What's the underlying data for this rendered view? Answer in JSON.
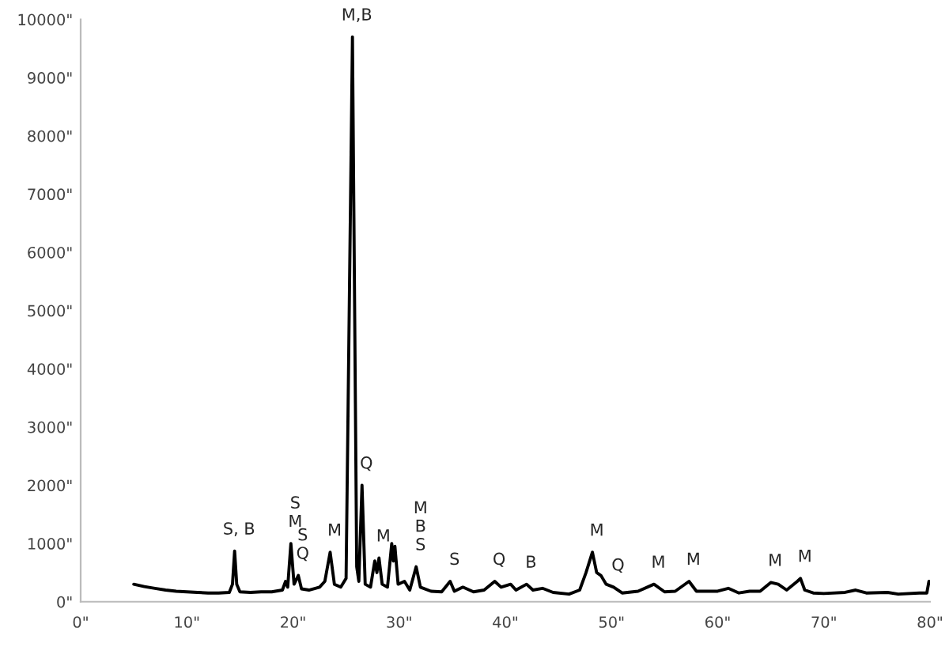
{
  "chart_data": {
    "type": "line",
    "x": [
      5,
      6,
      7,
      8,
      9,
      10,
      11,
      12,
      13,
      14,
      14.3,
      14.5,
      14.7,
      15,
      16,
      17,
      18,
      19,
      19.3,
      19.5,
      19.8,
      20.1,
      20.5,
      20.8,
      21.5,
      22.5,
      23,
      23.5,
      23.9,
      24.5,
      25,
      25.6,
      26,
      26.2,
      26.5,
      26.8,
      27.3,
      27.7,
      27.9,
      28.1,
      28.4,
      28.9,
      29.3,
      29.45,
      29.6,
      29.9,
      30.5,
      31,
      31.6,
      32,
      33,
      34,
      34.8,
      35.2,
      36,
      37,
      38,
      39,
      39.6,
      40.5,
      41,
      42,
      42.6,
      43.5,
      44.5,
      46,
      47,
      47.6,
      48.2,
      48.6,
      49,
      49.5,
      50.2,
      51,
      52.5,
      54,
      55,
      56,
      57.3,
      58,
      60,
      61,
      62,
      63,
      64,
      65,
      65.7,
      66.5,
      67.5,
      67.8,
      68.2,
      69,
      70,
      72,
      73,
      74,
      76,
      77,
      79,
      79.7,
      79.9
    ],
    "series": [
      {
        "color": "#000000",
        "values": [
          300,
          260,
          230,
          200,
          180,
          170,
          160,
          150,
          150,
          160,
          300,
          870,
          300,
          170,
          160,
          170,
          170,
          200,
          350,
          250,
          1000,
          300,
          450,
          220,
          200,
          250,
          350,
          850,
          300,
          250,
          400,
          9700,
          600,
          350,
          2000,
          300,
          250,
          700,
          500,
          750,
          300,
          250,
          1000,
          700,
          950,
          300,
          350,
          200,
          600,
          250,
          180,
          170,
          350,
          180,
          250,
          170,
          200,
          350,
          250,
          300,
          200,
          300,
          200,
          230,
          160,
          130,
          200,
          500,
          850,
          500,
          450,
          300,
          250,
          150,
          180,
          300,
          170,
          180,
          350,
          180,
          180,
          230,
          150,
          180,
          180,
          330,
          300,
          200,
          350,
          400,
          200,
          150,
          140,
          160,
          200,
          150,
          160,
          130,
          150,
          150,
          350
        ]
      }
    ],
    "xlim": [
      0,
      80
    ],
    "xticks": [
      {
        "value": 0,
        "label": "0\""
      },
      {
        "value": 10,
        "label": "10\""
      },
      {
        "value": 20,
        "label": "20\""
      },
      {
        "value": 30,
        "label": "30\""
      },
      {
        "value": 40,
        "label": "40\""
      },
      {
        "value": 50,
        "label": "50\""
      },
      {
        "value": 60,
        "label": "60\""
      },
      {
        "value": 70,
        "label": "70\""
      },
      {
        "value": 80,
        "label": "80\""
      }
    ],
    "ylim": [
      0,
      10000
    ],
    "yticks": [
      {
        "value": 0,
        "label": "0\""
      },
      {
        "value": 1000,
        "label": "1000\""
      },
      {
        "value": 2000,
        "label": "2000\""
      },
      {
        "value": 3000,
        "label": "3000\""
      },
      {
        "value": 4000,
        "label": "4000\""
      },
      {
        "value": 5000,
        "label": "5000\""
      },
      {
        "value": 6000,
        "label": "6000\""
      },
      {
        "value": 7000,
        "label": "7000\""
      },
      {
        "value": 8000,
        "label": "8000\""
      },
      {
        "value": 9000,
        "label": "9000\""
      },
      {
        "value": 10000,
        "label": "10000\""
      }
    ],
    "grid": false,
    "marker": "none",
    "line_style": "solid",
    "annotations": [
      {
        "text": "S, B",
        "x": 14.5,
        "y": 870
      },
      {
        "text": "S\nM",
        "x": 19.8,
        "y": 1000
      },
      {
        "text": "S\nQ",
        "x": 20.5,
        "y": 450
      },
      {
        "text": "M",
        "x": 23.5,
        "y": 850
      },
      {
        "text": "M,B",
        "x": 25.6,
        "y": 9700
      },
      {
        "text": "Q",
        "x": 26.5,
        "y": 2000
      },
      {
        "text": "M",
        "x": 28.1,
        "y": 750
      },
      {
        "text": "M\nB\nS",
        "x": 31.6,
        "y": 600
      },
      {
        "text": "S",
        "x": 34.8,
        "y": 350
      },
      {
        "text": "Q",
        "x": 39,
        "y": 350
      },
      {
        "text": "B",
        "x": 42,
        "y": 300
      },
      {
        "text": "M",
        "x": 48.2,
        "y": 850
      },
      {
        "text": "Q",
        "x": 50.2,
        "y": 250
      },
      {
        "text": "M",
        "x": 54,
        "y": 300
      },
      {
        "text": "M",
        "x": 57.3,
        "y": 350
      },
      {
        "text": "M",
        "x": 65,
        "y": 330
      },
      {
        "text": "M",
        "x": 67.8,
        "y": 400
      }
    ]
  }
}
